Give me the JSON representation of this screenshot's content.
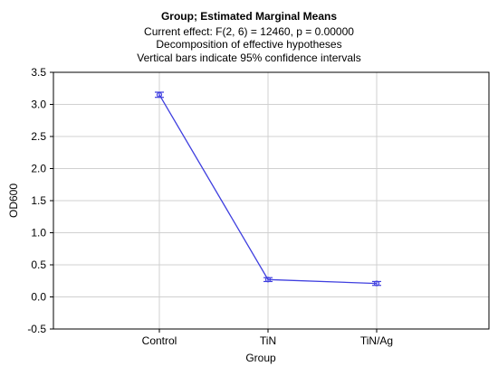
{
  "chart_data": {
    "type": "line",
    "title": "Group; Estimated Marginal Means",
    "subtitles": [
      "Current effect: F(2, 6) = 12460, p = 0.00000",
      "Decomposition of effective hypotheses",
      "Vertical bars indicate 95% confidence intervals"
    ],
    "xlabel": "Group",
    "ylabel": "OD600",
    "categories": [
      "Control",
      "TiN",
      "TiN/Ag"
    ],
    "series": [
      {
        "values": [
          3.15,
          0.27,
          0.21
        ],
        "ci_lower": [
          3.11,
          0.24,
          0.18
        ],
        "ci_upper": [
          3.19,
          0.3,
          0.24
        ],
        "color": "#3f3fdf"
      }
    ],
    "ylim": [
      -0.5,
      3.5
    ],
    "yticks": [
      "-0.5",
      "0.0",
      "0.5",
      "1.0",
      "1.5",
      "2.0",
      "2.5",
      "3.0",
      "3.5"
    ],
    "grid": true
  }
}
